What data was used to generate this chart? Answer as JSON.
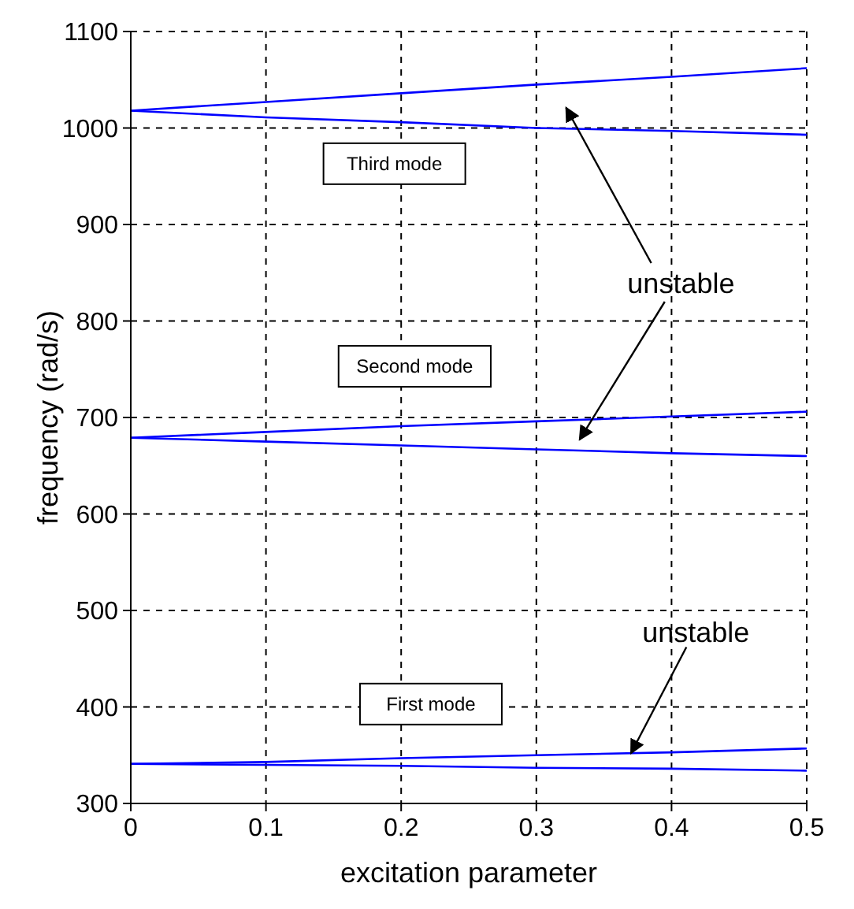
{
  "chart_data": {
    "type": "line",
    "xlabel": "excitation parameter",
    "ylabel": "frequency (rad/s)",
    "x": [
      0,
      0.1,
      0.2,
      0.3,
      0.4,
      0.5
    ],
    "series": [
      {
        "color": "#0000ff",
        "values": [
          1018,
          1027,
          1036,
          1045,
          1053,
          1062
        ]
      },
      {
        "color": "#0000ff",
        "values": [
          1018,
          1011,
          1006,
          1000,
          997,
          993
        ]
      },
      {
        "color": "#0000ff",
        "values": [
          679,
          685,
          691,
          696,
          701,
          706
        ]
      },
      {
        "color": "#0000ff",
        "values": [
          679,
          675,
          671,
          667,
          663,
          660
        ]
      },
      {
        "color": "#0000ff",
        "values": [
          341,
          343,
          347,
          350,
          353,
          357
        ]
      },
      {
        "color": "#0000ff",
        "values": [
          341,
          340,
          339,
          337,
          336,
          334
        ]
      }
    ],
    "xlim": [
      0,
      0.5
    ],
    "xticks": [
      0,
      0.1,
      0.2,
      0.3,
      0.4,
      0.5
    ],
    "ylim": [
      300,
      1100
    ],
    "yticks": [
      300,
      400,
      500,
      600,
      700,
      800,
      900,
      1000,
      1100
    ],
    "grid": true,
    "marker": "none",
    "line_style": "solid",
    "annotations": [
      "Third mode",
      "Second mode",
      "First mode",
      "unstable",
      {
        "text": "unstable",
        "x": 0.37,
        "y": 352
      }
    ]
  }
}
